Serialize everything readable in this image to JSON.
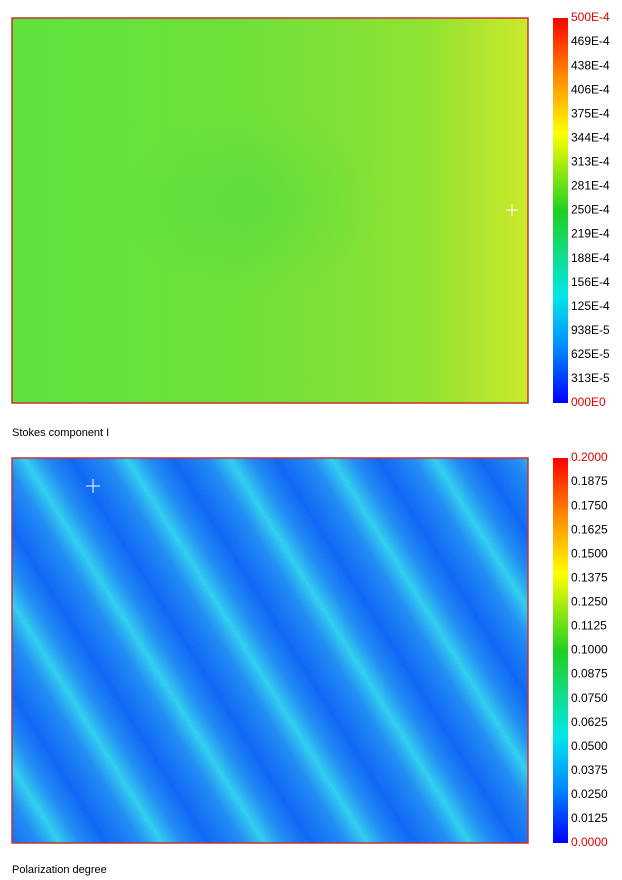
{
  "panels": [
    {
      "caption": "Stokes component I",
      "colorbar_labels": [
        "500E-4",
        "469E-4",
        "438E-4",
        "406E-4",
        "375E-4",
        "344E-4",
        "313E-4",
        "281E-4",
        "250E-4",
        "219E-4",
        "188E-4",
        "156E-4",
        "125E-4",
        "938E-5",
        "625E-5",
        "313E-5",
        "000E0"
      ]
    },
    {
      "caption": "Polarization degree",
      "colorbar_labels": [
        "0.2000",
        "0.1875",
        "0.1750",
        "0.1625",
        "0.1500",
        "0.1375",
        "0.1250",
        "0.1125",
        "0.1000",
        "0.0875",
        "0.0750",
        "0.0625",
        "0.0500",
        "0.0375",
        "0.0250",
        "0.0125",
        "0.0000"
      ]
    }
  ]
}
